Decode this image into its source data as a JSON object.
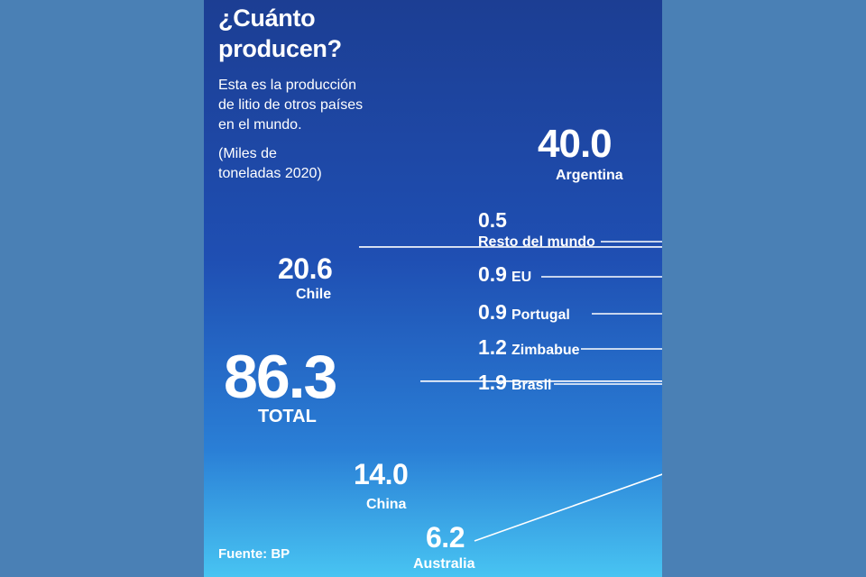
{
  "header": {
    "title_line1": "¿Cuánto",
    "title_line2": "producen?",
    "desc_line1": "Esta es la producción",
    "desc_line2": "de litio de otros países",
    "desc_line3": "en el mundo.",
    "unit_line1": "(Miles de",
    "unit_line2": "toneladas 2020)"
  },
  "total": {
    "value": "86.3",
    "label": "TOTAL"
  },
  "source": "Fuente: BP",
  "colors": {
    "segment_outer": "#ffffff",
    "segment_inner": "#e3f1fa",
    "leader": "#ffffff",
    "dot": "#2a1608"
  },
  "chart_data": {
    "type": "pie",
    "style": "semicircular donut",
    "unit": "Miles de toneladas 2020",
    "total": 86.3,
    "slices": [
      {
        "label": "Argentina",
        "value": 40.0,
        "value_label": "40.0"
      },
      {
        "label": "Chile",
        "value": 20.6,
        "value_label": "20.6"
      },
      {
        "label": "China",
        "value": 14.0,
        "value_label": "14.0"
      },
      {
        "label": "Australia",
        "value": 6.2,
        "value_label": "6.2"
      },
      {
        "label": "Brasil",
        "value": 1.9,
        "value_label": "1.9"
      },
      {
        "label": "Zimbabue",
        "value": 1.2,
        "value_label": "1.2"
      },
      {
        "label": "Portugal",
        "value": 0.9,
        "value_label": "0.9"
      },
      {
        "label": "EU",
        "value": 0.9,
        "value_label": "0.9"
      },
      {
        "label": "Resto del mundo",
        "value": 0.5,
        "value_label": "0.5"
      }
    ]
  }
}
